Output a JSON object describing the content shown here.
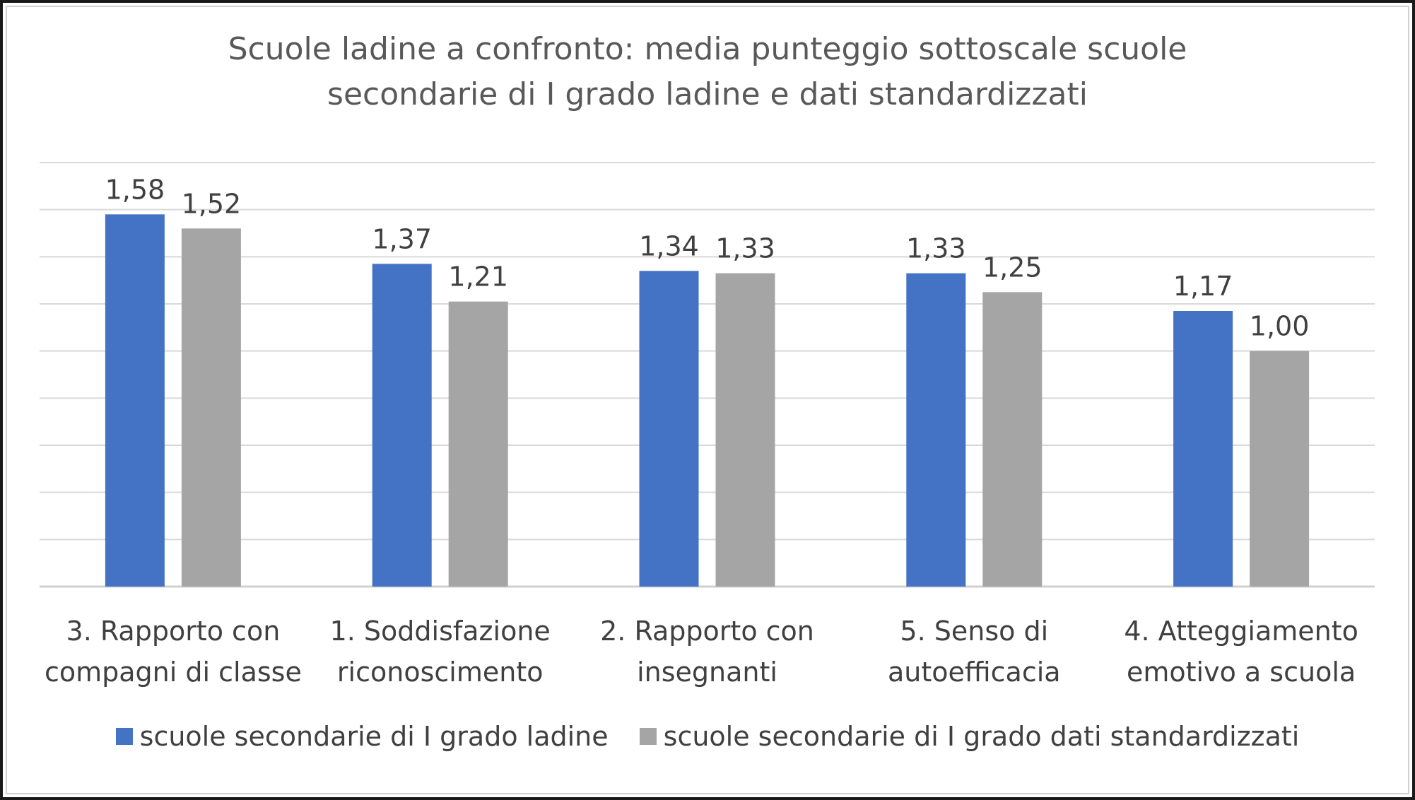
{
  "chart_data": {
    "type": "bar",
    "title_lines": [
      "Scuole ladine a confronto: media punteggio sottoscale scuole",
      "secondarie di I grado ladine e dati standardizzati"
    ],
    "categories": [
      [
        "3. Rapporto con",
        "compagni di classe"
      ],
      [
        "1. Soddisfazione",
        "riconoscimento"
      ],
      [
        "2. Rapporto con",
        "insegnanti"
      ],
      [
        "5. Senso di",
        "autoefficacia"
      ],
      [
        "4. Atteggiamento",
        "emotivo a scuola"
      ]
    ],
    "series": [
      {
        "name": "scuole secondarie di I grado ladine",
        "color": "#4472c4",
        "values": [
          1.58,
          1.37,
          1.34,
          1.33,
          1.17
        ],
        "labels": [
          "1,58",
          "1,37",
          "1,34",
          "1,33",
          "1,17"
        ]
      },
      {
        "name": "scuole secondarie di I grado dati standardizzati",
        "color": "#a5a5a5",
        "values": [
          1.52,
          1.21,
          1.33,
          1.25,
          1.0
        ],
        "labels": [
          "1,52",
          "1,21",
          "1,33",
          "1,25",
          "1,00"
        ]
      }
    ],
    "ylim": [
      0,
      1.8
    ],
    "grid": true,
    "gridline_step": 0.2,
    "legend": "bottom",
    "xlabel": "",
    "ylabel": ""
  }
}
